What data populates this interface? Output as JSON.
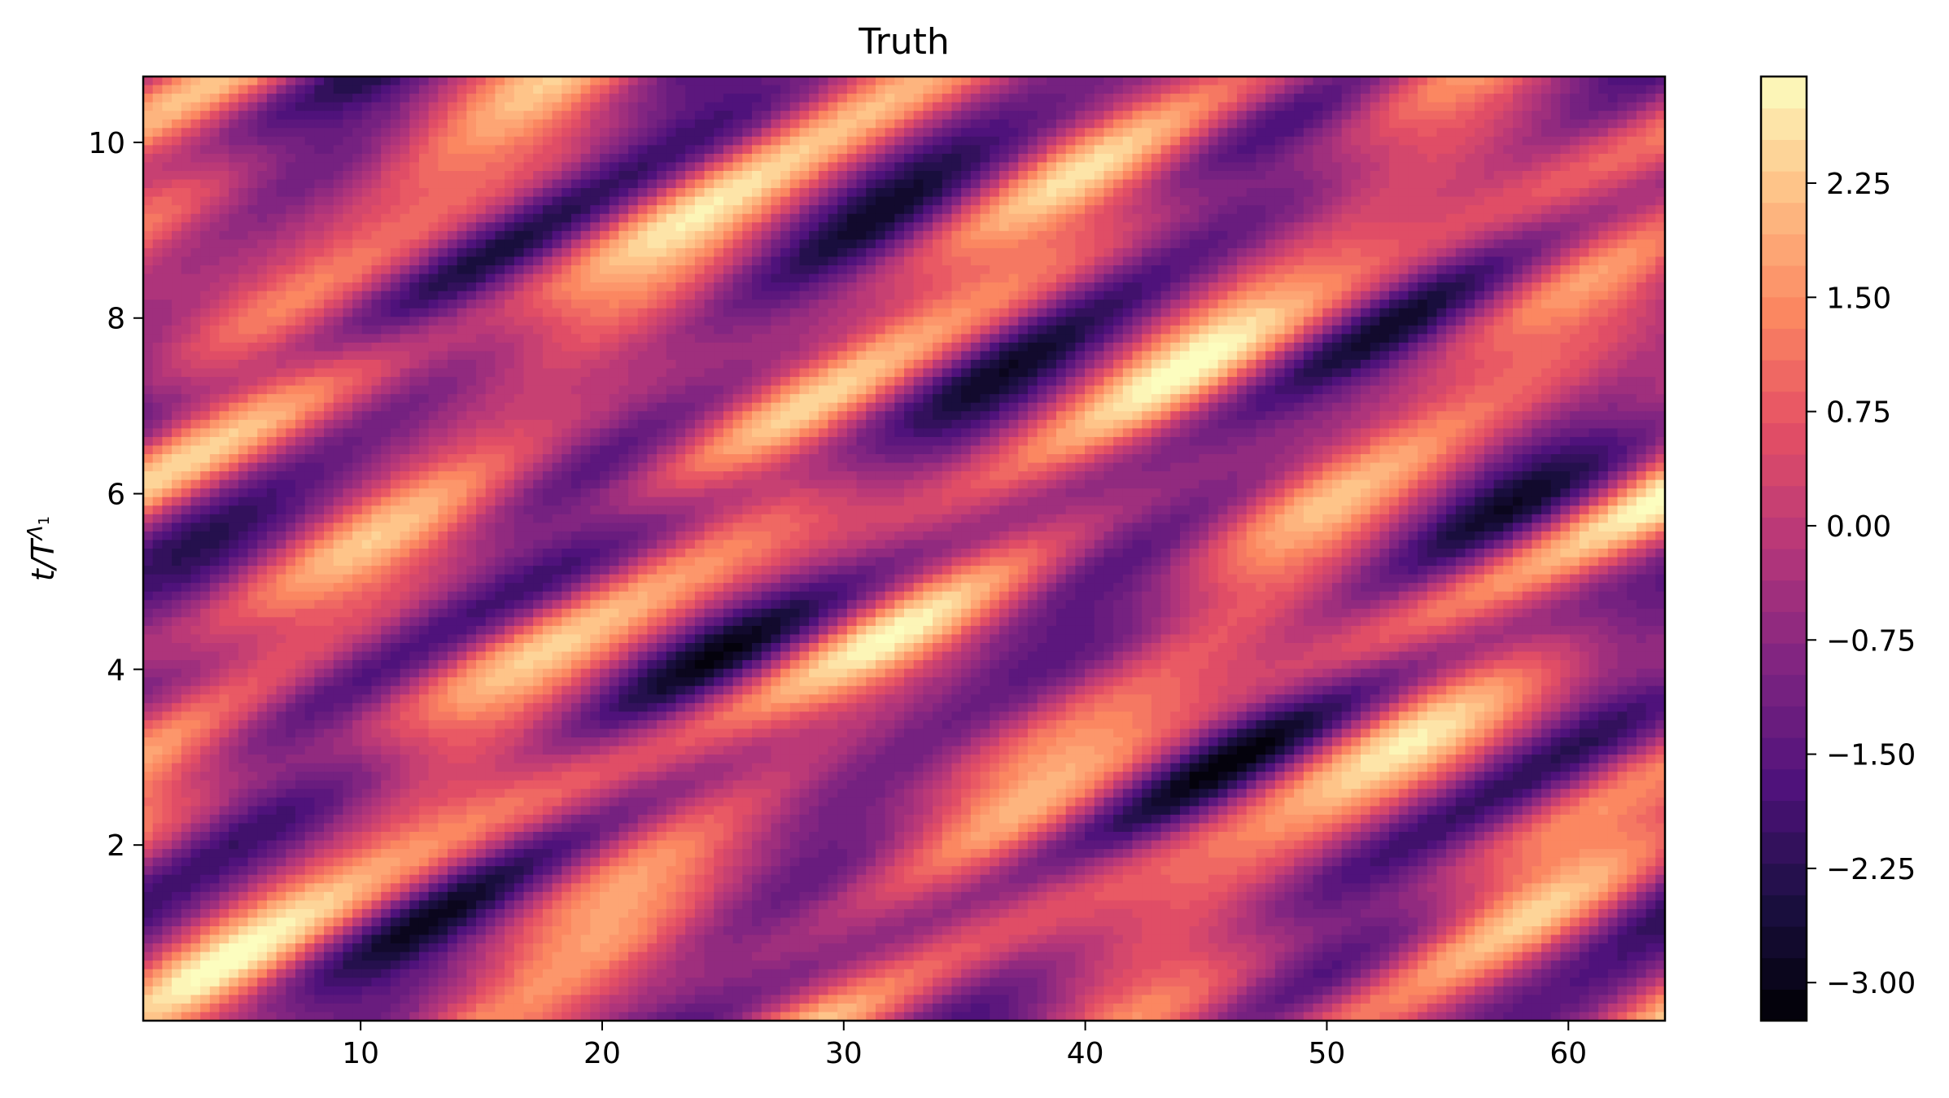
{
  "chart_data": {
    "type": "heatmap",
    "title": "Truth",
    "xlabel": "",
    "ylabel": "t/T",
    "ylabel_superscript": "Λ",
    "ylabel_superscript_sub": "1",
    "xlim": [
      1,
      64
    ],
    "ylim": [
      0,
      10.75
    ],
    "x_ticks": [
      10,
      20,
      30,
      40,
      50,
      60
    ],
    "x_tick_labels": [
      "10",
      "20",
      "30",
      "40",
      "50",
      "60"
    ],
    "y_ticks": [
      2,
      4,
      6,
      8,
      10
    ],
    "y_tick_labels": [
      "2",
      "4",
      "6",
      "8",
      "10"
    ],
    "colormap": "magma",
    "clim": [
      -3.25,
      2.95
    ],
    "colorbar_ticks": [
      2.25,
      1.5,
      0.75,
      0.0,
      -0.75,
      -1.5,
      -2.25,
      -3.0
    ],
    "colorbar_tick_labels": [
      "2.25",
      "1.50",
      "0.75",
      "0.00",
      "−0.75",
      "−1.50",
      "−2.25",
      "−3.00"
    ],
    "grid": false,
    "legend": "none",
    "field_description": "Kuramoto–Sivashinsky style travelling-wave field: alternating bright (high) and dark (low) streaks drifting to larger x as t increases, minimum about -3.1, maximum about 2.9"
  }
}
